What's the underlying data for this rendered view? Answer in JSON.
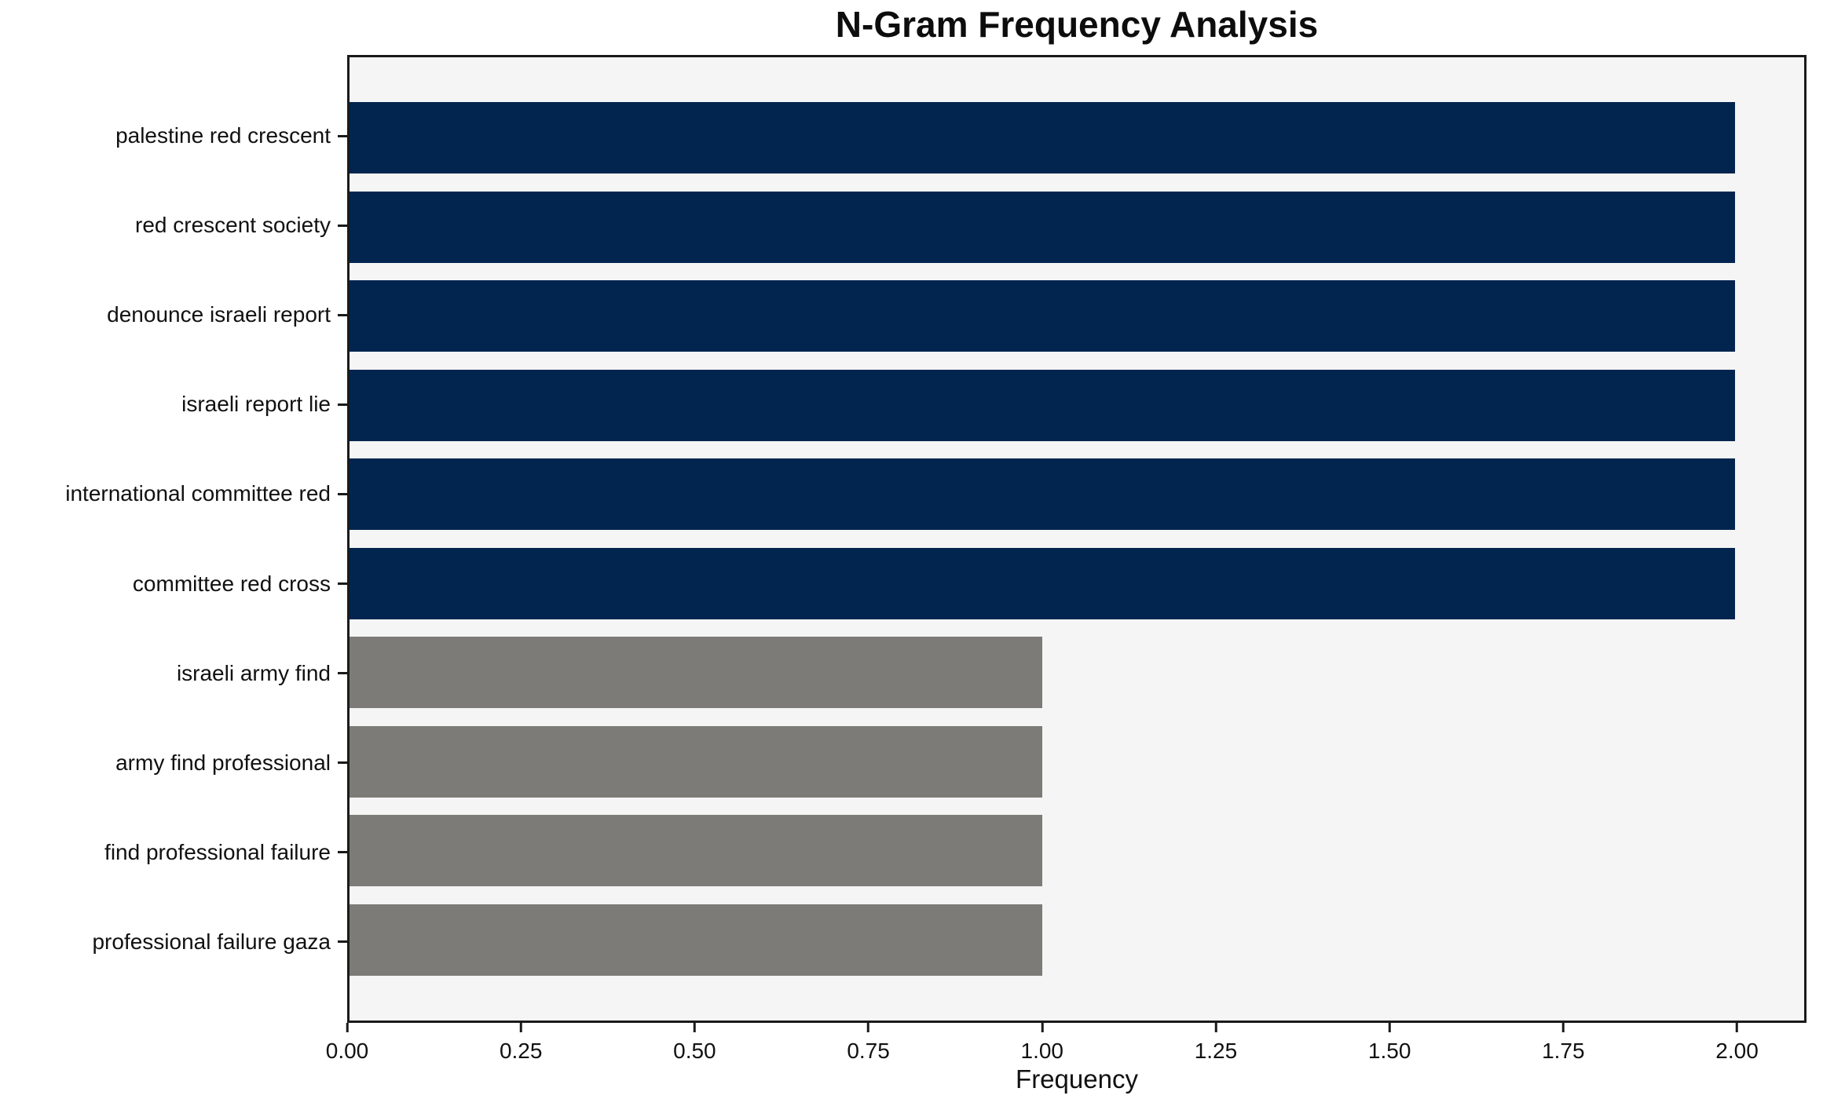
{
  "chart_data": {
    "type": "bar",
    "orientation": "horizontal",
    "title": "N-Gram Frequency Analysis",
    "xlabel": "Frequency",
    "ylabel": "",
    "categories": [
      "palestine red crescent",
      "red crescent society",
      "denounce israeli report",
      "israeli report lie",
      "international committee red",
      "committee red cross",
      "israeli army find",
      "army find professional",
      "find professional failure",
      "professional failure gaza"
    ],
    "values": [
      2,
      2,
      2,
      2,
      2,
      2,
      1,
      1,
      1,
      1
    ],
    "bar_colors": [
      "#02254f",
      "#02254f",
      "#02254f",
      "#02254f",
      "#02254f",
      "#02254f",
      "#7c7b77",
      "#7c7b77",
      "#7c7b77",
      "#7c7b77"
    ],
    "xlim": [
      0,
      2.1
    ],
    "xticks": [
      {
        "value": 0.0,
        "label": "0.00"
      },
      {
        "value": 0.25,
        "label": "0.25"
      },
      {
        "value": 0.5,
        "label": "0.50"
      },
      {
        "value": 0.75,
        "label": "0.75"
      },
      {
        "value": 1.0,
        "label": "1.00"
      },
      {
        "value": 1.25,
        "label": "1.25"
      },
      {
        "value": 1.5,
        "label": "1.50"
      },
      {
        "value": 1.75,
        "label": "1.75"
      },
      {
        "value": 2.0,
        "label": "2.00"
      }
    ],
    "grid": false,
    "legend": false,
    "plot_background": "#f5f5f5",
    "bar_height_fraction": 0.8
  }
}
